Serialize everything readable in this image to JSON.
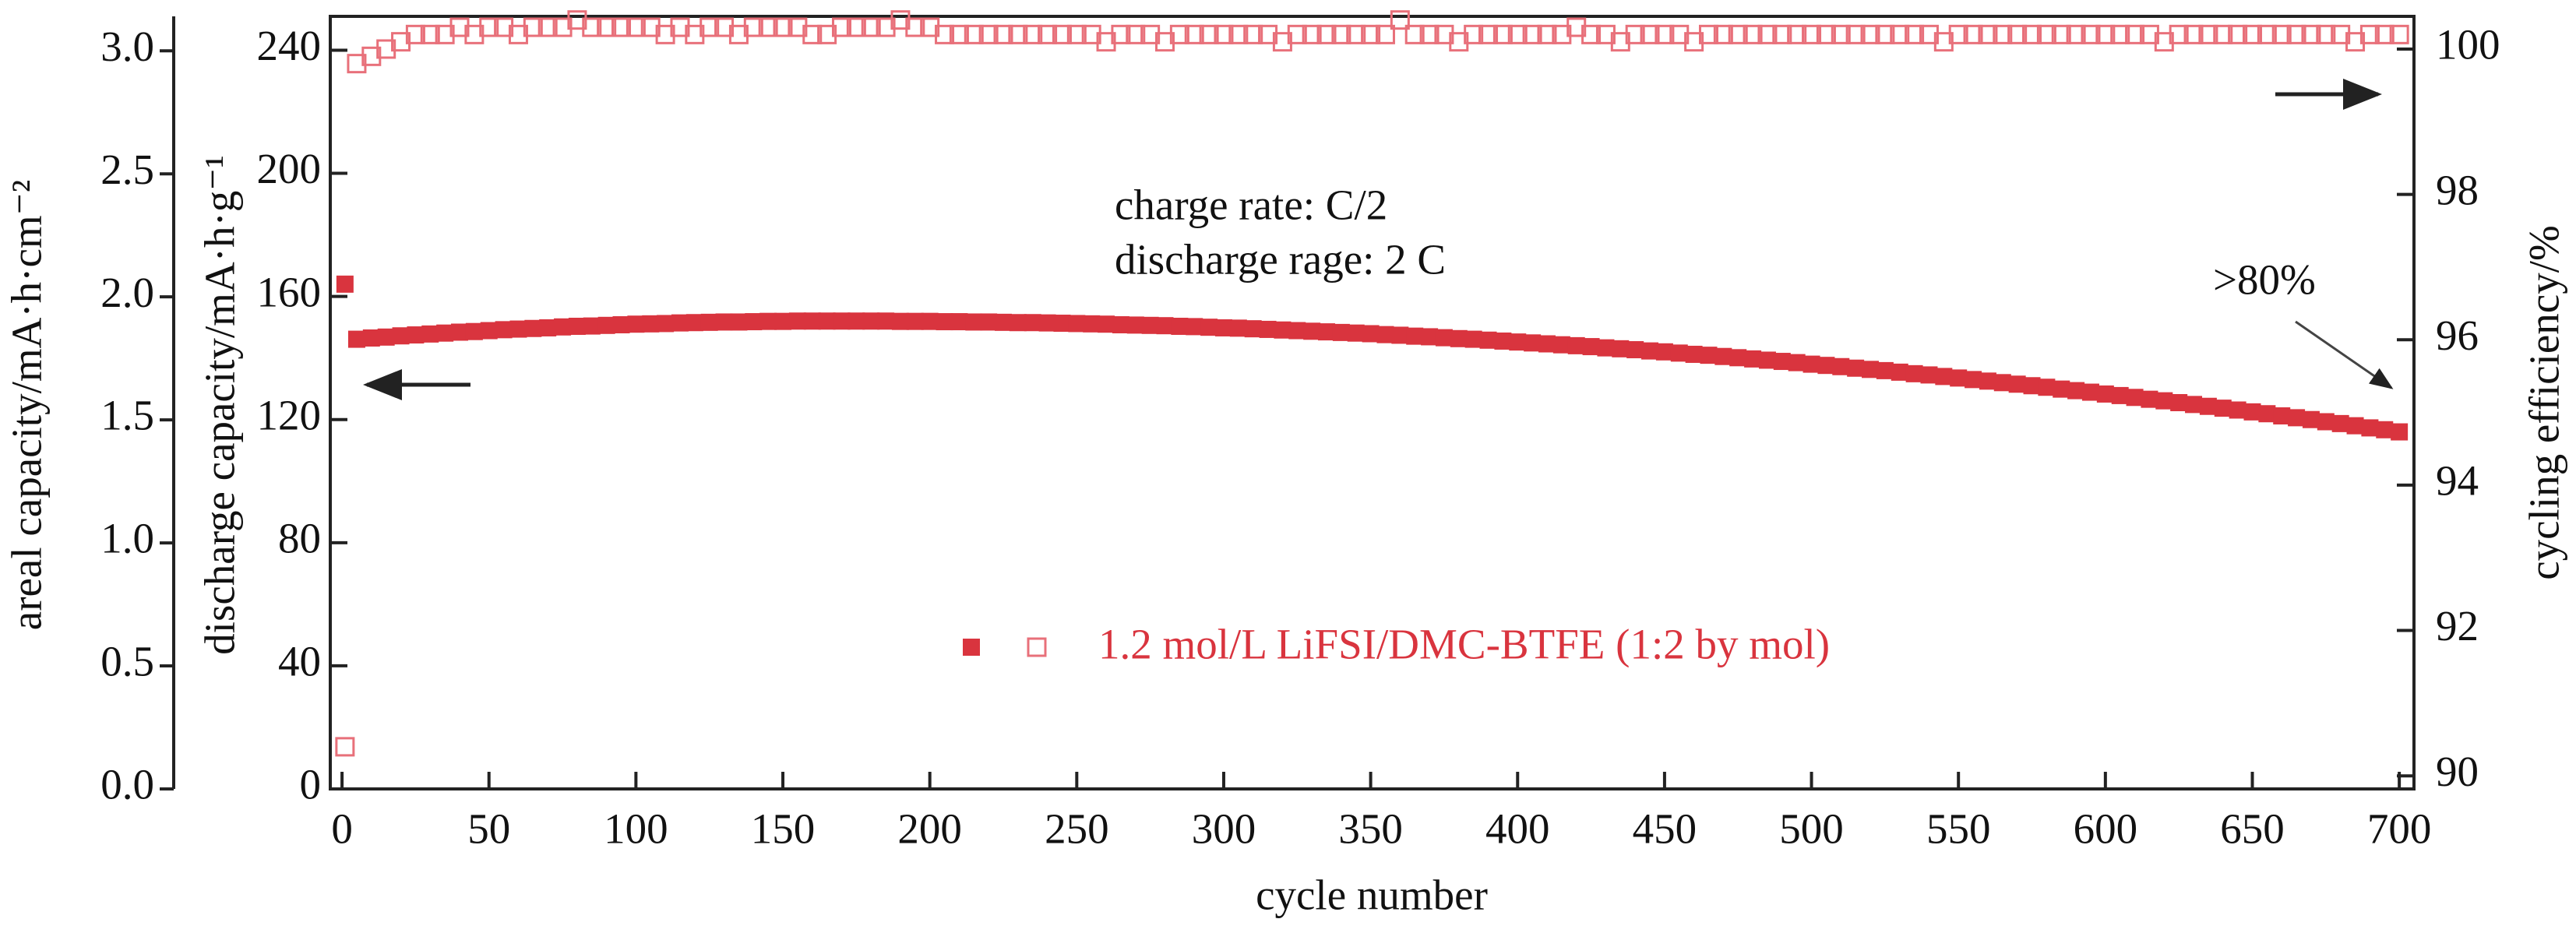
{
  "chart_data": {
    "type": "scatter",
    "x_label": "cycle number",
    "y_label": "discharge capacity/mA·h·g⁻¹",
    "y2_label": "cycling efficiency/%",
    "y3_label": "areal capacity/mA·h·cm⁻²",
    "annotations": [
      "charge rate: C/2",
      "discharge rage: 2 C",
      ">80%"
    ],
    "legend_text": "1.2 mol/L LiFSI/DMC-BTFE (1:2 by mol)",
    "xlim": [
      -4,
      705
    ],
    "xticks": [
      0,
      50,
      100,
      150,
      200,
      250,
      300,
      350,
      400,
      450,
      500,
      550,
      600,
      650,
      700
    ],
    "ylim": [
      0,
      251
    ],
    "yticks": [
      0,
      40,
      80,
      120,
      160,
      200,
      240
    ],
    "y2lim": [
      89.82,
      100.45
    ],
    "y2ticks": [
      90,
      92,
      94,
      96,
      98,
      100
    ],
    "y3lim": [
      0,
      3.14
    ],
    "y3ticks": [
      {
        "value": 0,
        "label": "0.0"
      },
      0.5,
      {
        "value": 1,
        "label": "1.0"
      },
      1.5,
      {
        "value": 2,
        "label": "2.0"
      },
      2.5,
      {
        "value": 3,
        "label": "3.0"
      }
    ],
    "x": [
      1,
      5,
      10,
      15,
      20,
      25,
      30,
      35,
      40,
      45,
      50,
      55,
      60,
      65,
      70,
      75,
      80,
      85,
      90,
      95,
      100,
      105,
      110,
      115,
      120,
      125,
      130,
      135,
      140,
      145,
      150,
      155,
      160,
      165,
      170,
      175,
      180,
      185,
      190,
      195,
      200,
      205,
      210,
      215,
      220,
      225,
      230,
      235,
      240,
      245,
      250,
      255,
      260,
      265,
      270,
      275,
      280,
      285,
      290,
      295,
      300,
      305,
      310,
      315,
      320,
      325,
      330,
      335,
      340,
      345,
      350,
      355,
      360,
      365,
      370,
      375,
      380,
      385,
      390,
      395,
      400,
      405,
      410,
      415,
      420,
      425,
      430,
      435,
      440,
      445,
      450,
      455,
      460,
      465,
      470,
      475,
      480,
      485,
      490,
      495,
      500,
      505,
      510,
      515,
      520,
      525,
      530,
      535,
      540,
      545,
      550,
      555,
      560,
      565,
      570,
      575,
      580,
      585,
      590,
      595,
      600,
      605,
      610,
      615,
      620,
      625,
      630,
      635,
      640,
      645,
      650,
      655,
      660,
      665,
      670,
      675,
      680,
      685,
      690,
      695,
      700
    ],
    "series": [
      {
        "color": "#d9343e",
        "filled": true,
        "values": [
          164,
          146.1,
          146.5,
          146.8,
          147.2,
          147.5,
          147.8,
          148.1,
          148.4,
          148.6,
          148.9,
          149.2,
          149.4,
          149.6,
          149.8,
          150.1,
          150.3,
          150.4,
          150.6,
          150.8,
          151.0,
          151.1,
          151.2,
          151.4,
          151.5,
          151.6,
          151.7,
          151.7,
          151.8,
          151.9,
          151.9,
          152.0,
          152.0,
          152.0,
          152.0,
          152.0,
          152.0,
          152.0,
          151.9,
          151.9,
          151.9,
          151.8,
          151.8,
          151.7,
          151.7,
          151.6,
          151.5,
          151.5,
          151.4,
          151.3,
          151.2,
          151.1,
          151.0,
          150.8,
          150.7,
          150.6,
          150.5,
          150.3,
          150.2,
          150.0,
          149.8,
          149.7,
          149.5,
          149.3,
          149.1,
          148.9,
          148.7,
          148.5,
          148.3,
          148.1,
          147.9,
          147.6,
          147.4,
          147.1,
          146.9,
          146.6,
          146.3,
          146.1,
          145.8,
          145.5,
          145.2,
          144.9,
          144.6,
          144.3,
          144.0,
          143.7,
          143.3,
          143.0,
          142.7,
          142.3,
          142.0,
          141.6,
          141.2,
          140.9,
          140.5,
          140.1,
          139.7,
          139.3,
          138.9,
          138.5,
          138.0,
          137.6,
          137.2,
          136.7,
          136.3,
          135.9,
          135.4,
          134.9,
          134.5,
          134.0,
          133.5,
          133.0,
          132.5,
          132.0,
          131.5,
          131.0,
          130.5,
          129.9,
          129.4,
          128.9,
          128.3,
          127.8,
          127.2,
          126.6,
          126.1,
          125.5,
          124.9,
          124.3,
          123.7,
          123.1,
          122.5,
          121.9,
          121.2,
          120.6,
          120.0,
          119.3,
          118.7,
          118.0,
          117.3,
          116.7,
          116.0
        ]
      },
      {
        "color": "#e8707a",
        "filled": false,
        "axis": "y2",
        "values": [
          90.4,
          99.8,
          99.9,
          100.0,
          100.1,
          100.2,
          100.2,
          100.2,
          100.3,
          100.2,
          100.3,
          100.3,
          100.2,
          100.3,
          100.3,
          100.3,
          100.4,
          100.3,
          100.3,
          100.3,
          100.3,
          100.3,
          100.2,
          100.3,
          100.2,
          100.3,
          100.3,
          100.2,
          100.3,
          100.3,
          100.3,
          100.3,
          100.2,
          100.2,
          100.3,
          100.3,
          100.3,
          100.3,
          100.4,
          100.3,
          100.3,
          100.2,
          100.2,
          100.2,
          100.2,
          100.2,
          100.2,
          100.2,
          100.2,
          100.2,
          100.2,
          100.2,
          100.1,
          100.2,
          100.2,
          100.2,
          100.1,
          100.2,
          100.2,
          100.2,
          100.2,
          100.2,
          100.2,
          100.2,
          100.1,
          100.2,
          100.2,
          100.2,
          100.2,
          100.2,
          100.2,
          100.2,
          100.4,
          100.2,
          100.2,
          100.2,
          100.1,
          100.2,
          100.2,
          100.2,
          100.2,
          100.2,
          100.2,
          100.2,
          100.3,
          100.2,
          100.2,
          100.1,
          100.2,
          100.2,
          100.2,
          100.2,
          100.1,
          100.2,
          100.2,
          100.2,
          100.2,
          100.2,
          100.2,
          100.2,
          100.2,
          100.2,
          100.2,
          100.2,
          100.2,
          100.2,
          100.2,
          100.2,
          100.2,
          100.1,
          100.2,
          100.2,
          100.2,
          100.2,
          100.2,
          100.2,
          100.2,
          100.2,
          100.2,
          100.2,
          100.2,
          100.2,
          100.2,
          100.2,
          100.1,
          100.2,
          100.2,
          100.2,
          100.2,
          100.2,
          100.2,
          100.2,
          100.2,
          100.2,
          100.2,
          100.2,
          100.2,
          100.1,
          100.2,
          100.2,
          100.2
        ]
      }
    ]
  }
}
